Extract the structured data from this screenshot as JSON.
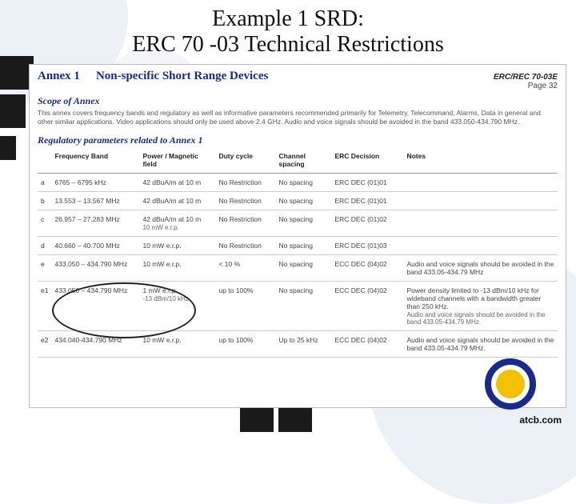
{
  "title_line1": "Example 1 SRD:",
  "title_line2": "ERC 70 -03 Technical Restrictions",
  "doc": {
    "annex_label": "Annex 1",
    "annex_title": "Non-specific Short Range Devices",
    "ref": "ERC/REC 70-03E",
    "page": "Page 32",
    "scope_heading": "Scope of Annex",
    "scope_text": "This annex covers frequency bands and regulatory as well as informative parameters recommended primarily for Telemetry, Telecommand, Alarms, Data in general and other similar applications. Video applications should only be used above 2.4 GHz. Audio and voice signals should be avoided in the band 433.050-434.790 MHz.",
    "reg_heading": "Regulatory parameters related to Annex 1",
    "columns": {
      "freq": "Frequency Band",
      "power": "Power / Magnetic field",
      "duty": "Duty cycle",
      "spacing": "Channel spacing",
      "decision": "ERC Decision",
      "notes": "Notes"
    },
    "rows": [
      {
        "idx": "a",
        "freq": "6765 – 6795 kHz",
        "power": "42 dBuA/m at 10 m",
        "duty": "No Restriction",
        "spacing": "No spacing",
        "decision": "ERC DEC (01)01",
        "notes": ""
      },
      {
        "idx": "b",
        "freq": "13.553 – 13.567 MHz",
        "power": "42 dBuA/m at 10 m",
        "duty": "No Restriction",
        "spacing": "No spacing",
        "decision": "ERC DEC (01)01",
        "notes": ""
      },
      {
        "idx": "c",
        "freq": "26.957 – 27.283 MHz",
        "power": "42 dBuA/m at 10 m",
        "power_sub": "10 mW    e.r.p.",
        "duty": "No Restriction",
        "spacing": "No spacing",
        "decision": "ERC DEC (01)02",
        "notes": ""
      },
      {
        "idx": "d",
        "freq": "40.660 – 40.700 MHz",
        "power": "10 mW    e.r.p.",
        "duty": "No Restriction",
        "spacing": "No spacing",
        "decision": "ERC DEC (01)03",
        "notes": ""
      },
      {
        "idx": "e",
        "freq": "433.050 – 434.790 MHz",
        "power": "10 mW    e.r.p.",
        "duty": "< 10 %",
        "spacing": "No spacing",
        "decision": "ECC DEC (04)02",
        "notes": "Audio and voice signals should be avoided in the band 433.05-434.79 MHz"
      },
      {
        "idx": "e1",
        "freq": "433.050 – 434.790 MHz",
        "power": "1 mW    e.r.p.",
        "power_sub": "-13 dBm/10 kHz",
        "duty": "up to 100%",
        "spacing": "No spacing",
        "decision": "ECC DEC (04)02",
        "notes": "Power density limited to -13 dBm/10 kHz for wideband channels with a bandwidth greater than 250 kHz.",
        "notes_sub": "Audio and voice signals should be avoided in the band 433.05-434.79 MHz."
      },
      {
        "idx": "e2",
        "freq": "434.040-434.790 MHz",
        "power": "10 mW    e.r.p.",
        "duty": "up to 100%",
        "spacing": "Up to 25 kHz",
        "decision": "ECC DEC (04)02",
        "notes": "Audio and voice signals should be avoided in the band 433.05-434.79 MHz."
      }
    ]
  },
  "footer_url": "atcb.com",
  "colors": {
    "heading_blue": "#1a2a8a",
    "accent_yellow": "#f3c100",
    "bg_circle": "#c8d7eb"
  }
}
